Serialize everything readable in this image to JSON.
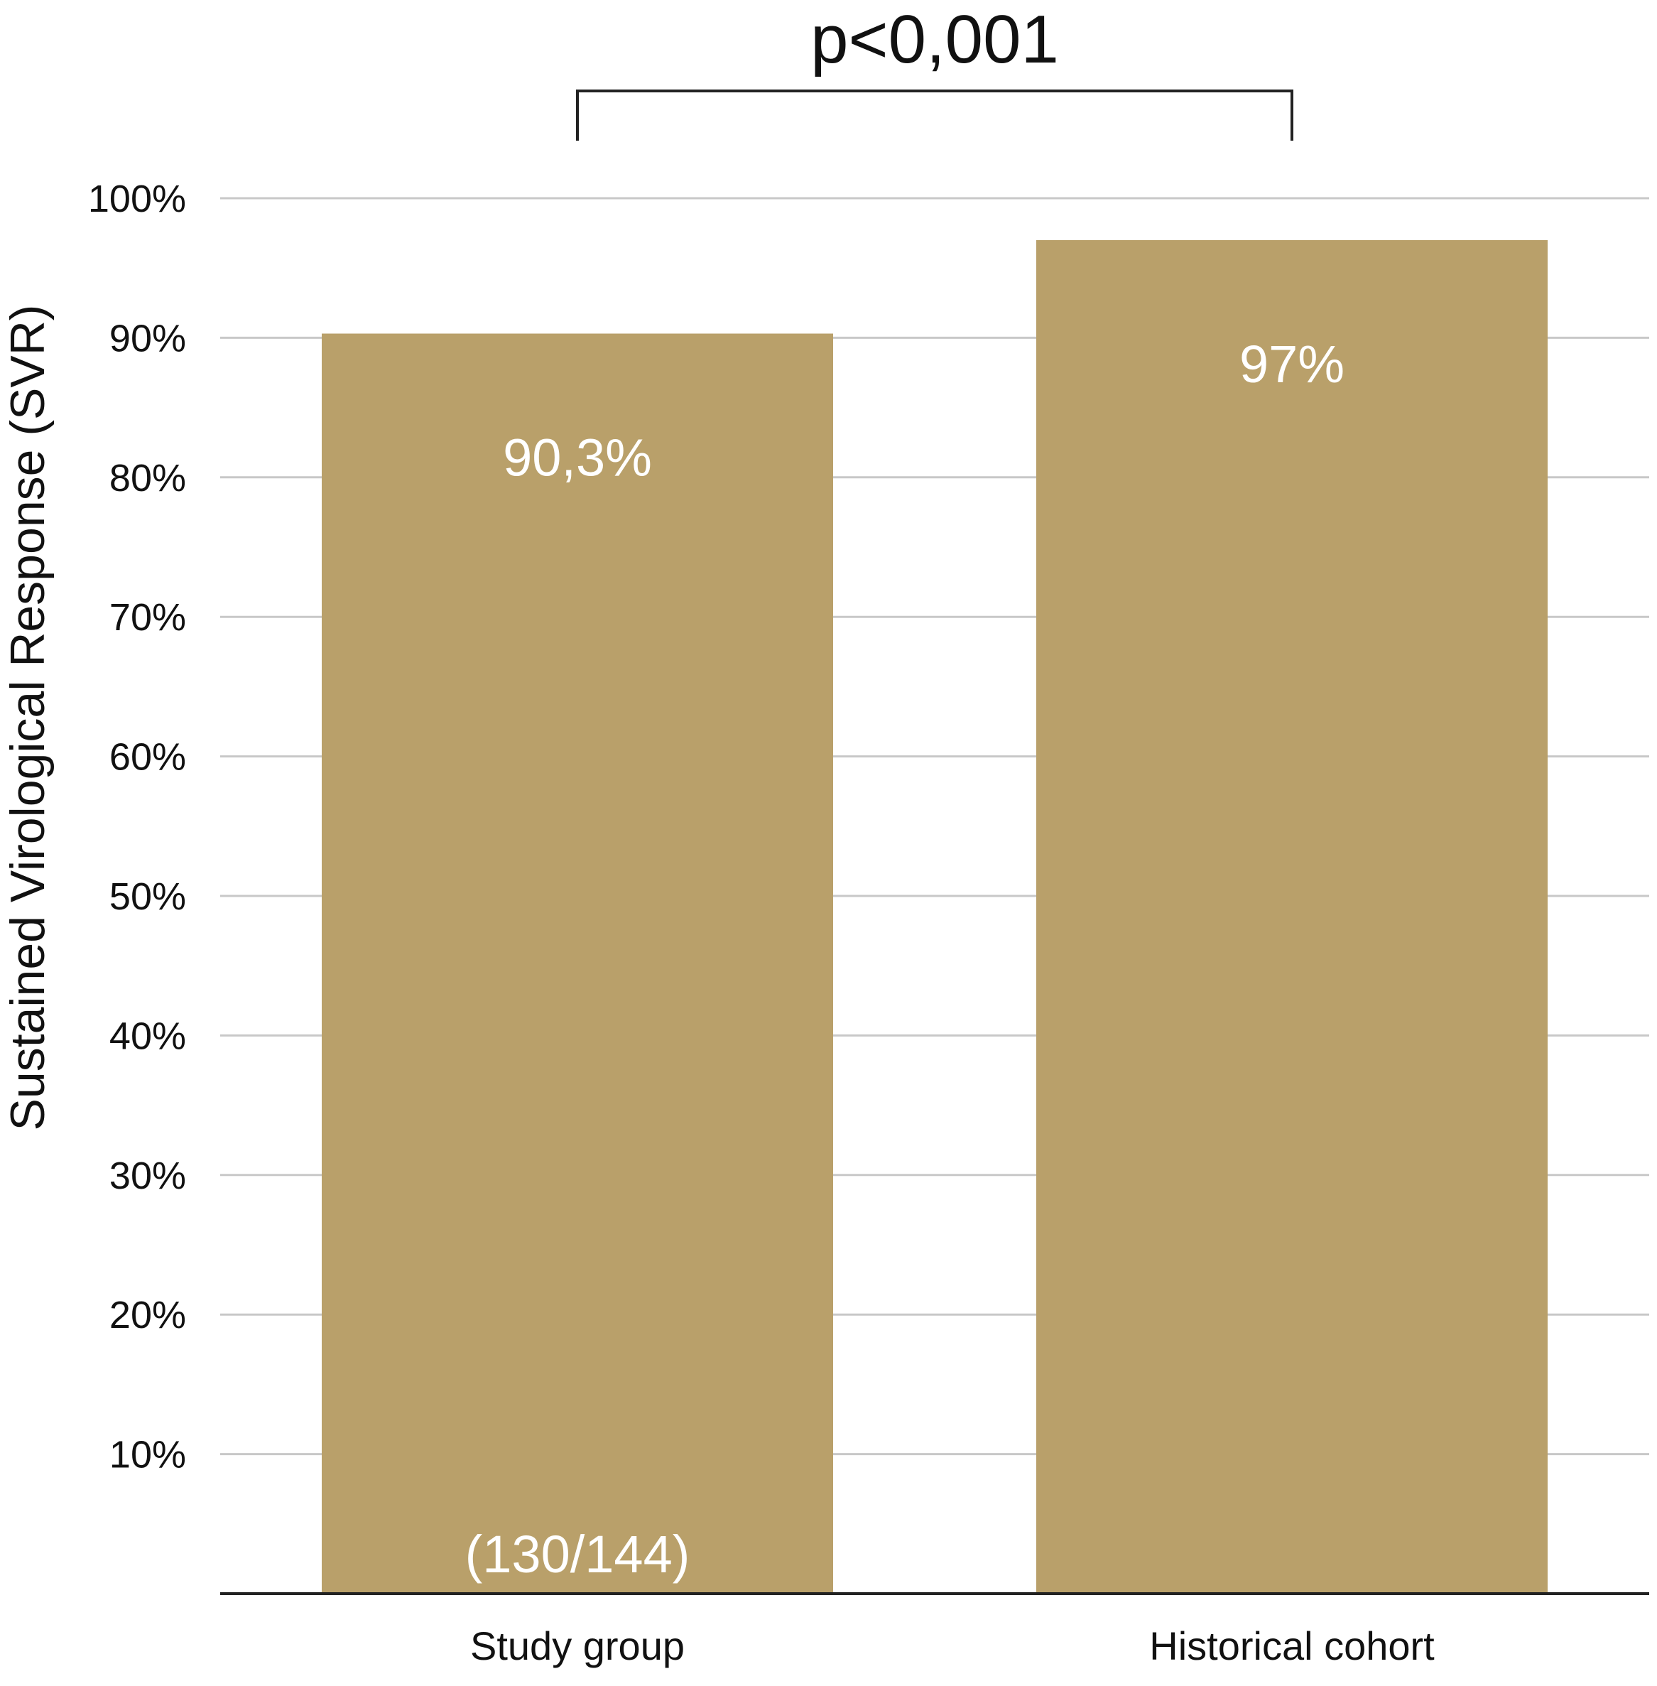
{
  "chart_data": {
    "type": "bar",
    "categories": [
      "Study group",
      "Historical cohort"
    ],
    "values": [
      90.3,
      97
    ],
    "value_labels": [
      "90,3%",
      "97%"
    ],
    "sub_labels": [
      "(130/144)",
      ""
    ],
    "title": "",
    "xlabel": "",
    "ylabel": "Sustained Virological Response (SVR)",
    "ylim": [
      0,
      100
    ],
    "yticks": [
      10,
      20,
      30,
      40,
      50,
      60,
      70,
      80,
      90,
      100
    ],
    "ytick_labels": [
      "10%",
      "20%",
      "30%",
      "40%",
      "50%",
      "60%",
      "70%",
      "80%",
      "90%",
      "100%"
    ],
    "grid": true,
    "significance": {
      "label": "p<0,001",
      "between": [
        0,
        1
      ]
    },
    "colors": {
      "bar": "#b9a06a",
      "grid": "#c8c8c8",
      "axis": "#222222",
      "text": "#111111",
      "bar_text": "#ffffff"
    }
  }
}
